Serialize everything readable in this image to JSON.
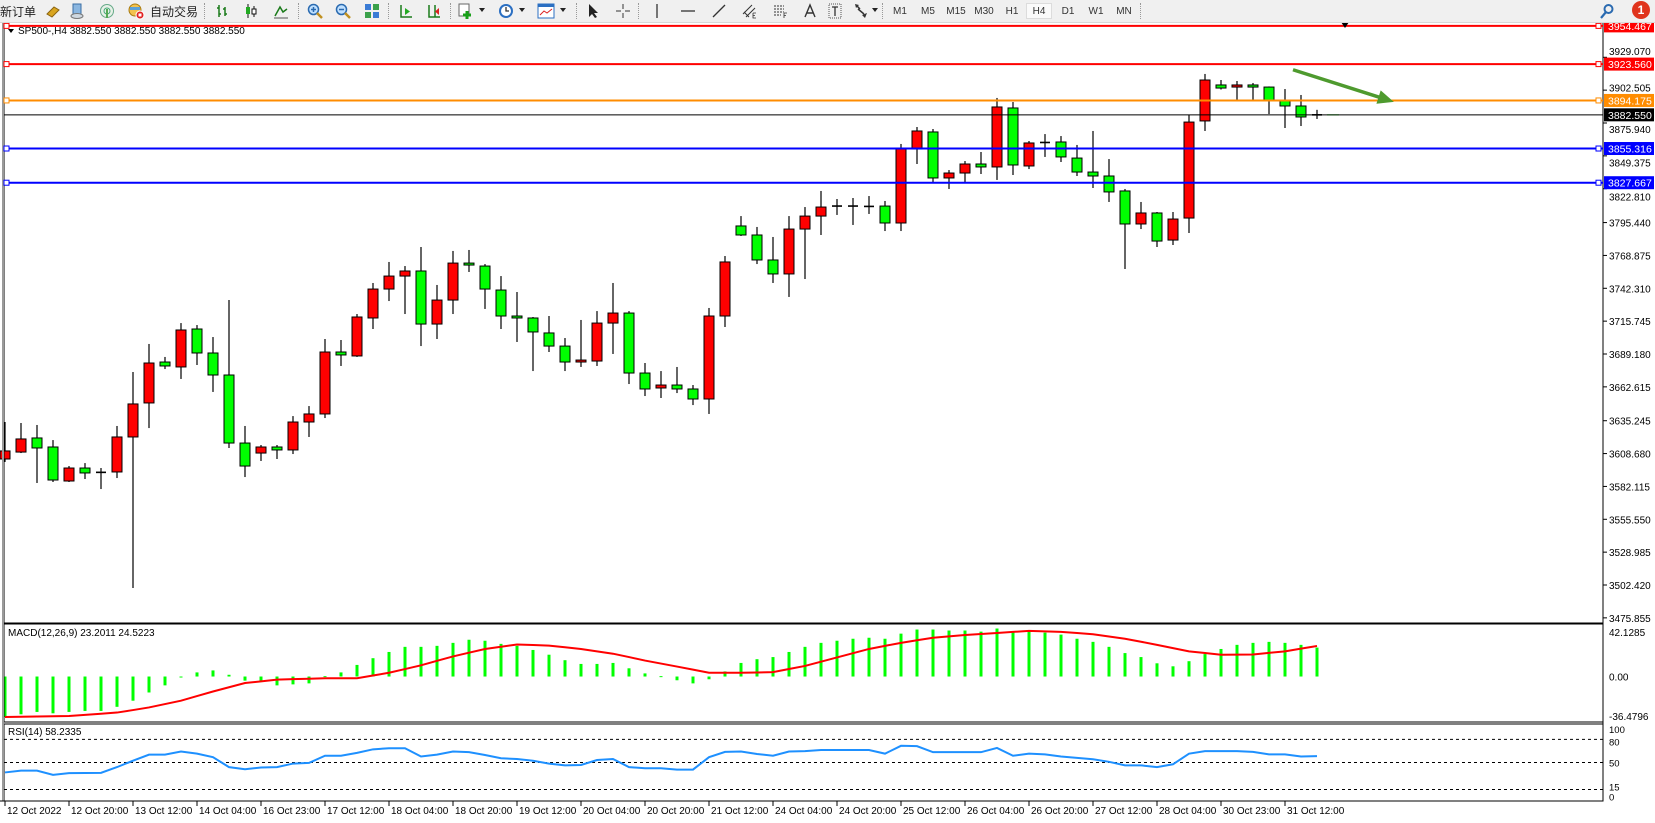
{
  "toolbar": {
    "new_order": "新订单",
    "auto_trading": "自动交易",
    "timeframes": [
      "M1",
      "M5",
      "M15",
      "M30",
      "H1",
      "H4",
      "D1",
      "W1",
      "MN"
    ],
    "active_timeframe": "H4",
    "notification_count": "1",
    "icons": [
      "gold-bars-icon",
      "history-center-icon",
      "signals-icon",
      "auto-trading-icon",
      "bar-chart-icon",
      "candlestick-icon",
      "line-chart-icon",
      "zoom-in-icon",
      "zoom-out-icon",
      "tile-windows-icon",
      "chart-shift-icon",
      "auto-scroll-icon",
      "indicators-icon",
      "periods-clock-icon",
      "templates-icon",
      "cursor-icon",
      "crosshair-icon",
      "vertical-line-icon",
      "horizontal-line-icon",
      "trend-line-icon",
      "equidistant-channel-icon",
      "fibonacci-icon",
      "text-icon",
      "text-label-icon",
      "arrows-icon",
      "search-icon",
      "notification-icon"
    ]
  },
  "chart": {
    "header": "SP500-,H4  3882.550 3882.550 3882.550 3882.550",
    "macd_label": "MACD(12,26,9) 23.2011 24.5223",
    "rsi_label": "RSI(14) 58.2335"
  },
  "colors": {
    "up_candle": "#ff0000",
    "down_candle": "#00ff00",
    "candle_border": "#000000",
    "macd_hist": "#00ff00",
    "macd_signal": "#ff0000",
    "rsi_line": "#1e90ff",
    "arrow": "#4e9a2e"
  },
  "chart_data": [
    {
      "type": "candlestick",
      "symbol": "SP500-",
      "timeframe": "H4",
      "ylim": [
        3471.7,
        3957.6
      ],
      "y_ticks": [
        "3929.070",
        "3902.505",
        "3875.940",
        "3849.375",
        "3822.810",
        "3795.440",
        "3768.875",
        "3742.310",
        "3715.745",
        "3689.180",
        "3662.615",
        "3635.245",
        "3608.680",
        "3582.115",
        "3555.550",
        "3528.985",
        "3502.420",
        "3475.855"
      ],
      "x_labels": [
        "12 Oct 2022",
        "12 Oct 20:00",
        "13 Oct 12:00",
        "14 Oct 04:00",
        "16 Oct 23:00",
        "17 Oct 12:00",
        "18 Oct 04:00",
        "18 Oct 20:00",
        "19 Oct 12:00",
        "20 Oct 04:00",
        "20 Oct 20:00",
        "21 Oct 12:00",
        "24 Oct 04:00",
        "24 Oct 20:00",
        "25 Oct 12:00",
        "26 Oct 04:00",
        "26 Oct 20:00",
        "27 Oct 12:00",
        "28 Oct 04:00",
        "30 Oct 23:00",
        "31 Oct 12:00"
      ],
      "x_label_every": 4,
      "ohlc": [
        [
          3604.3,
          3634.2,
          3601.9,
          3610.8
        ],
        [
          3609.9,
          3633.4,
          3609.1,
          3620.5
        ],
        [
          3621.3,
          3631.8,
          3584.9,
          3613.2
        ],
        [
          3614.0,
          3619.6,
          3585.7,
          3587.3
        ],
        [
          3586.5,
          3598.6,
          3585.7,
          3597.0
        ],
        [
          3597.0,
          3601.0,
          3588.1,
          3593.0
        ],
        [
          3593.0,
          3597.0,
          3580.0,
          3593.5
        ],
        [
          3593.8,
          3631.0,
          3588.9,
          3622.1
        ],
        [
          3622.1,
          3674.6,
          3500.0,
          3648.8
        ],
        [
          3649.6,
          3697.3,
          3629.3,
          3681.9
        ],
        [
          3682.7,
          3686.8,
          3677.0,
          3679.5
        ],
        [
          3678.7,
          3714.2,
          3669.0,
          3708.6
        ],
        [
          3709.4,
          3712.6,
          3680.3,
          3690.0
        ],
        [
          3690.0,
          3702.9,
          3658.5,
          3672.2
        ],
        [
          3672.2,
          3732.8,
          3613.2,
          3617.2
        ],
        [
          3617.2,
          3631.0,
          3589.7,
          3598.6
        ],
        [
          3609.1,
          3615.6,
          3602.7,
          3614.0
        ],
        [
          3614.0,
          3615.6,
          3604.3,
          3611.6
        ],
        [
          3611.6,
          3639.0,
          3608.3,
          3634.2
        ],
        [
          3634.2,
          3647.1,
          3622.1,
          3640.7
        ],
        [
          3640.7,
          3701.3,
          3637.4,
          3690.8
        ],
        [
          3690.8,
          3700.5,
          3679.5,
          3688.4
        ],
        [
          3687.6,
          3721.5,
          3686.8,
          3719.1
        ],
        [
          3718.3,
          3746.6,
          3709.4,
          3741.7
        ],
        [
          3741.7,
          3763.6,
          3732.0,
          3752.2
        ],
        [
          3752.2,
          3760.3,
          3721.5,
          3756.3
        ],
        [
          3756.3,
          3775.7,
          3695.6,
          3713.4
        ],
        [
          3713.4,
          3745.0,
          3701.3,
          3732.8
        ],
        [
          3732.8,
          3772.5,
          3721.5,
          3762.7
        ],
        [
          3762.7,
          3773.3,
          3755.5,
          3761.1
        ],
        [
          3760.3,
          3761.9,
          3725.6,
          3741.7
        ],
        [
          3740.9,
          3752.2,
          3709.4,
          3719.9
        ],
        [
          3719.9,
          3739.3,
          3698.9,
          3718.3
        ],
        [
          3718.3,
          3719.1,
          3675.4,
          3707.0
        ],
        [
          3706.2,
          3719.9,
          3690.8,
          3695.6
        ],
        [
          3695.6,
          3702.1,
          3675.4,
          3682.7
        ],
        [
          3682.7,
          3716.7,
          3678.7,
          3684.3
        ],
        [
          3683.5,
          3723.9,
          3679.5,
          3714.2
        ],
        [
          3714.2,
          3746.6,
          3689.2,
          3722.3
        ],
        [
          3722.3,
          3723.9,
          3664.9,
          3673.8
        ],
        [
          3673.8,
          3681.9,
          3655.2,
          3660.9
        ],
        [
          3661.7,
          3675.4,
          3653.6,
          3664.1
        ],
        [
          3664.1,
          3678.7,
          3657.6,
          3660.9
        ],
        [
          3660.9,
          3664.1,
          3647.9,
          3652.8
        ],
        [
          3652.8,
          3726.4,
          3640.7,
          3719.9
        ],
        [
          3719.9,
          3768.4,
          3711.0,
          3763.6
        ],
        [
          3792.7,
          3800.7,
          3784.6,
          3785.4
        ],
        [
          3785.4,
          3791.9,
          3761.9,
          3765.2
        ],
        [
          3765.2,
          3783.8,
          3746.6,
          3753.9
        ],
        [
          3753.9,
          3800.7,
          3735.3,
          3790.2
        ],
        [
          3790.2,
          3808.0,
          3749.8,
          3800.7
        ],
        [
          3800.7,
          3821.0,
          3785.4,
          3808.0
        ],
        [
          3808.0,
          3814.5,
          3801.6,
          3808.8
        ],
        [
          3808.8,
          3815.3,
          3793.5,
          3808.5
        ],
        [
          3808.5,
          3816.9,
          3802.4,
          3808.0
        ],
        [
          3808.8,
          3812.9,
          3788.6,
          3795.1
        ],
        [
          3795.1,
          3859.0,
          3788.6,
          3854.9
        ],
        [
          3854.9,
          3872.7,
          3842.8,
          3869.5
        ],
        [
          3868.7,
          3871.1,
          3827.4,
          3831.5
        ],
        [
          3831.5,
          3837.9,
          3822.6,
          3835.5
        ],
        [
          3835.5,
          3845.2,
          3828.2,
          3842.8
        ],
        [
          3842.8,
          3852.5,
          3834.7,
          3840.4
        ],
        [
          3840.4,
          3896.2,
          3829.9,
          3888.9
        ],
        [
          3888.1,
          3892.9,
          3833.9,
          3842.0
        ],
        [
          3841.2,
          3861.4,
          3838.7,
          3859.8
        ],
        [
          3859.8,
          3867.0,
          3848.5,
          3860.2
        ],
        [
          3860.6,
          3865.4,
          3844.4,
          3848.5
        ],
        [
          3847.6,
          3858.2,
          3833.1,
          3836.3
        ],
        [
          3836.3,
          3869.5,
          3823.4,
          3833.1
        ],
        [
          3833.1,
          3846.8,
          3812.1,
          3820.2
        ],
        [
          3821.0,
          3822.6,
          3757.9,
          3794.3
        ],
        [
          3794.3,
          3812.1,
          3790.2,
          3803.2
        ],
        [
          3803.2,
          3804.0,
          3775.7,
          3780.5
        ],
        [
          3781.3,
          3804.0,
          3777.3,
          3798.3
        ],
        [
          3799.1,
          3882.4,
          3787.0,
          3876.7
        ],
        [
          3877.6,
          3915.6,
          3869.5,
          3910.7
        ],
        [
          3906.7,
          3910.7,
          3903.0,
          3904.2
        ],
        [
          3905.0,
          3909.9,
          3894.5,
          3906.7
        ],
        [
          3906.7,
          3908.3,
          3894.5,
          3905.0
        ],
        [
          3905.0,
          3905.5,
          3883.2,
          3894.5
        ],
        [
          3894.5,
          3903.4,
          3871.9,
          3889.7
        ],
        [
          3889.7,
          3898.6,
          3873.5,
          3880.8
        ],
        [
          3881.5,
          3886.6,
          3879.2,
          3882.55
        ]
      ],
      "levels": [
        {
          "price": 3954.467,
          "label": "3954.467",
          "color": "#ff0000"
        },
        {
          "price": 3923.56,
          "label": "3923.560",
          "color": "#ff0000"
        },
        {
          "price": 3894.175,
          "label": "3894.175",
          "color": "#ff8c00"
        },
        {
          "price": 3882.55,
          "label": "3882.550",
          "color": "#000000"
        },
        {
          "price": 3855.316,
          "label": "3855.316",
          "color": "#0000ff"
        },
        {
          "price": 3827.667,
          "label": "3827.667",
          "color": "#0000ff"
        }
      ],
      "arrow": {
        "from": {
          "candle": 80.5,
          "price": 3919
        },
        "to": {
          "candle": 86.8,
          "price": 3893
        }
      }
    },
    {
      "type": "bar+line",
      "name": "MACD(12,26,9)",
      "ylim": [
        -36.4796,
        42.1285
      ],
      "y_ticks": [
        "42.1285",
        "0.00",
        "-36.4796"
      ],
      "histogram": [
        -32.5,
        -30.3,
        -28.4,
        -29.5,
        -28.4,
        -27.6,
        -27.6,
        -24.3,
        -19.4,
        -12.8,
        -7.1,
        -0.5,
        3.3,
        4.9,
        1.4,
        -3.3,
        -4.1,
        -7.1,
        -6.3,
        -5.5,
        0.3,
        3.3,
        9.3,
        14.7,
        19.7,
        23.8,
        23.8,
        24.6,
        27.0,
        29.5,
        28.7,
        26.2,
        24.6,
        21.3,
        17.5,
        13.1,
        10.1,
        10.1,
        10.9,
        6.6,
        2.5,
        0.3,
        -3.0,
        -5.5,
        -2.2,
        4.1,
        10.9,
        13.9,
        15.6,
        19.7,
        23.8,
        27.0,
        28.7,
        30.3,
        31.1,
        30.3,
        34.4,
        37.7,
        37.7,
        36.9,
        36.9,
        36.0,
        38.5,
        36.0,
        36.0,
        35.2,
        33.6,
        30.3,
        27.8,
        23.8,
        18.8,
        15.6,
        10.6,
        8.2,
        12.3,
        18.0,
        22.1,
        25.4,
        27.0,
        27.8,
        27.0,
        25.4,
        23.2
      ],
      "signal": [
        -32.5,
        -32.3,
        -32.1,
        -31.9,
        -31.7,
        -30.8,
        -29.9,
        -28.9,
        -26.9,
        -24.8,
        -22.1,
        -19.4,
        -15.7,
        -12.0,
        -8.6,
        -5.2,
        -3.9,
        -2.5,
        -2.1,
        -1.8,
        -1.4,
        -1.4,
        -1.4,
        0.8,
        3.0,
        6.0,
        9.0,
        12.6,
        16.1,
        19.1,
        22.1,
        23.9,
        25.7,
        25.3,
        24.8,
        23.5,
        22.1,
        20.2,
        18.3,
        15.6,
        12.8,
        10.4,
        8.0,
        5.5,
        3.0,
        3.0,
        3.0,
        3.2,
        3.5,
        6.0,
        8.5,
        11.9,
        15.3,
        18.7,
        22.1,
        24.6,
        27.0,
        29.1,
        31.1,
        32.2,
        33.3,
        34.1,
        34.9,
        35.8,
        36.6,
        36.2,
        35.8,
        34.9,
        33.9,
        32.1,
        30.3,
        27.9,
        25.4,
        22.8,
        20.2,
        18.9,
        17.5,
        17.6,
        17.7,
        19.0,
        20.2,
        22.4,
        24.5
      ]
    },
    {
      "type": "line",
      "name": "RSI(14)",
      "ylim": [
        0,
        100
      ],
      "levels": [
        80,
        50,
        15
      ],
      "y_ticks": [
        "100",
        "80",
        "50",
        "15",
        "0"
      ],
      "values": [
        37.1,
        39.4,
        39.4,
        33.9,
        36.2,
        36.4,
        36.6,
        44.0,
        52.3,
        60.2,
        60.2,
        64.3,
        61.5,
        56.9,
        44.0,
        41.2,
        43.5,
        44.0,
        48.6,
        49.5,
        58.8,
        58.8,
        62.5,
        67.1,
        68.5,
        68.5,
        57.8,
        60.2,
        64.3,
        63.4,
        59.7,
        55.5,
        54.6,
        52.3,
        48.6,
        46.3,
        46.8,
        53.2,
        54.6,
        44.0,
        42.6,
        42.6,
        40.8,
        40.8,
        56.9,
        63.8,
        64.3,
        61.1,
        58.8,
        64.3,
        64.8,
        66.2,
        66.2,
        66.2,
        66.2,
        61.5,
        71.7,
        71.2,
        63.4,
        63.4,
        63.4,
        63.4,
        68.9,
        58.8,
        61.5,
        60.6,
        57.8,
        56.0,
        54.2,
        50.9,
        46.3,
        46.3,
        44.0,
        47.7,
        61.5,
        64.8,
        64.8,
        64.8,
        63.8,
        60.6,
        60.6,
        57.8,
        58.2
      ]
    }
  ]
}
